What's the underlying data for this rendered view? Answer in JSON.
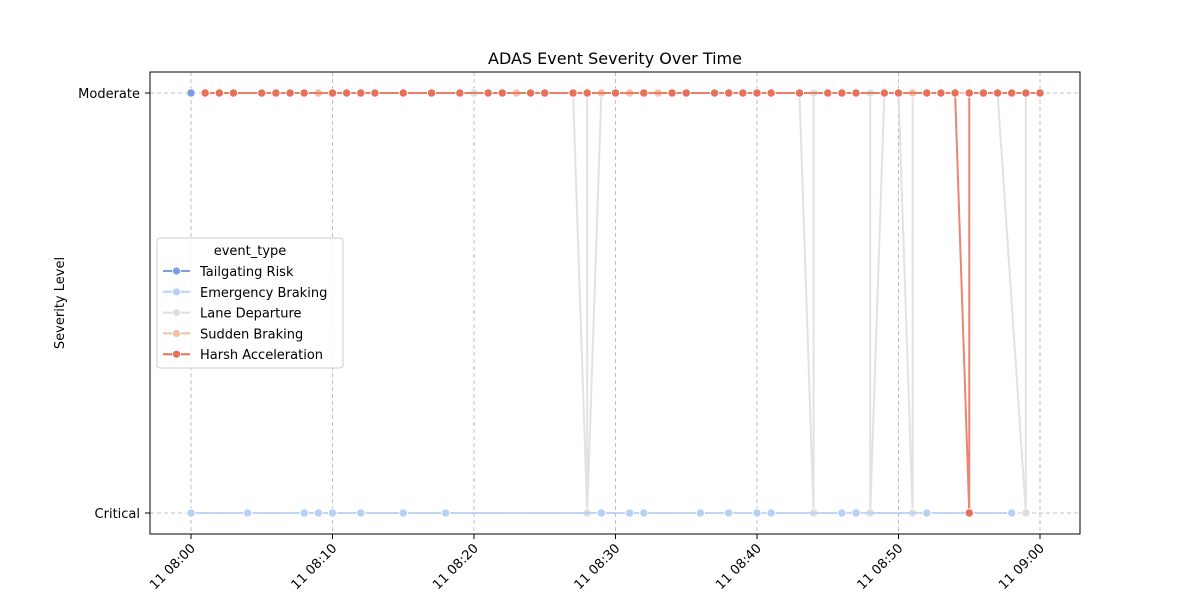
{
  "chart_data": {
    "type": "line",
    "title": "ADAS Event Severity Over Time",
    "xlabel": "",
    "ylabel": "Severity Level",
    "y_categories": [
      "Critical",
      "Moderate"
    ],
    "x_range": [
      "08:00",
      "09:00"
    ],
    "x_ticks": [
      "11 08:00",
      "11 08:10",
      "11 08:20",
      "11 08:30",
      "11 08:40",
      "11 08:50",
      "11 09:00"
    ],
    "grid": true,
    "legend": {
      "title": "event_type",
      "placement": "center-left"
    },
    "series": [
      {
        "name": "Tailgating Risk",
        "color": "#7b9ee6",
        "points": [
          [
            "08:00",
            "Moderate"
          ]
        ]
      },
      {
        "name": "Emergency Braking",
        "color": "#b9d0f5",
        "points": [
          [
            "08:00",
            "Critical"
          ],
          [
            "08:04",
            "Critical"
          ],
          [
            "08:04",
            "Critical"
          ],
          [
            "08:08",
            "Critical"
          ],
          [
            "08:09",
            "Critical"
          ],
          [
            "08:10",
            "Critical"
          ],
          [
            "08:12",
            "Critical"
          ],
          [
            "08:15",
            "Critical"
          ],
          [
            "08:18",
            "Critical"
          ],
          [
            "08:29",
            "Critical"
          ],
          [
            "08:31",
            "Critical"
          ],
          [
            "08:32",
            "Critical"
          ],
          [
            "08:36",
            "Critical"
          ],
          [
            "08:38",
            "Critical"
          ],
          [
            "08:40",
            "Critical"
          ],
          [
            "08:40",
            "Critical"
          ],
          [
            "08:41",
            "Critical"
          ],
          [
            "08:46",
            "Critical"
          ],
          [
            "08:47",
            "Critical"
          ],
          [
            "08:52",
            "Critical"
          ],
          [
            "08:58",
            "Critical"
          ]
        ]
      },
      {
        "name": "Lane Departure",
        "color": "#dddddd",
        "points": [
          [
            "08:01",
            "Moderate"
          ],
          [
            "08:05",
            "Moderate"
          ],
          [
            "08:10",
            "Moderate"
          ],
          [
            "08:15",
            "Moderate"
          ],
          [
            "08:20",
            "Moderate"
          ],
          [
            "08:25",
            "Moderate"
          ],
          [
            "08:27",
            "Moderate"
          ],
          [
            "08:28",
            "Critical"
          ],
          [
            "08:28",
            "Moderate"
          ],
          [
            "08:28",
            "Critical"
          ],
          [
            "08:29",
            "Moderate"
          ],
          [
            "08:35",
            "Moderate"
          ],
          [
            "08:40",
            "Moderate"
          ],
          [
            "08:43",
            "Moderate"
          ],
          [
            "08:44",
            "Critical"
          ],
          [
            "08:44",
            "Moderate"
          ],
          [
            "08:48",
            "Moderate"
          ],
          [
            "08:48",
            "Critical"
          ],
          [
            "08:49",
            "Moderate"
          ],
          [
            "08:50",
            "Moderate"
          ],
          [
            "08:51",
            "Critical"
          ],
          [
            "08:51",
            "Moderate"
          ],
          [
            "08:55",
            "Moderate"
          ],
          [
            "08:57",
            "Moderate"
          ],
          [
            "08:59",
            "Critical"
          ],
          [
            "08:59",
            "Moderate"
          ],
          [
            "09:00",
            "Moderate"
          ]
        ]
      },
      {
        "name": "Sudden Braking",
        "color": "#f5bfa6",
        "points": [
          [
            "08:01",
            "Moderate"
          ],
          [
            "08:03",
            "Moderate"
          ],
          [
            "08:05",
            "Moderate"
          ],
          [
            "08:07",
            "Moderate"
          ],
          [
            "08:09",
            "Moderate"
          ],
          [
            "08:11",
            "Moderate"
          ],
          [
            "08:13",
            "Moderate"
          ],
          [
            "08:15",
            "Moderate"
          ],
          [
            "08:17",
            "Moderate"
          ],
          [
            "08:19",
            "Moderate"
          ],
          [
            "08:21",
            "Moderate"
          ],
          [
            "08:23",
            "Moderate"
          ],
          [
            "08:25",
            "Moderate"
          ],
          [
            "08:27",
            "Moderate"
          ],
          [
            "08:29",
            "Moderate"
          ],
          [
            "08:31",
            "Moderate"
          ],
          [
            "08:33",
            "Moderate"
          ],
          [
            "08:35",
            "Moderate"
          ],
          [
            "08:37",
            "Moderate"
          ],
          [
            "08:39",
            "Moderate"
          ],
          [
            "08:41",
            "Moderate"
          ],
          [
            "08:43",
            "Moderate"
          ],
          [
            "08:45",
            "Moderate"
          ],
          [
            "08:47",
            "Moderate"
          ],
          [
            "08:49",
            "Moderate"
          ],
          [
            "08:51",
            "Moderate"
          ],
          [
            "08:53",
            "Moderate"
          ],
          [
            "08:55",
            "Moderate"
          ],
          [
            "08:57",
            "Moderate"
          ],
          [
            "08:59",
            "Moderate"
          ]
        ]
      },
      {
        "name": "Harsh Acceleration",
        "color": "#e8705a",
        "points": [
          [
            "08:01",
            "Moderate"
          ],
          [
            "08:01",
            "Moderate"
          ],
          [
            "08:02",
            "Moderate"
          ],
          [
            "08:03",
            "Moderate"
          ],
          [
            "08:05",
            "Moderate"
          ],
          [
            "08:06",
            "Moderate"
          ],
          [
            "08:06",
            "Moderate"
          ],
          [
            "08:07",
            "Moderate"
          ],
          [
            "08:08",
            "Moderate"
          ],
          [
            "08:10",
            "Moderate"
          ],
          [
            "08:11",
            "Moderate"
          ],
          [
            "08:12",
            "Moderate"
          ],
          [
            "08:13",
            "Moderate"
          ],
          [
            "08:15",
            "Moderate"
          ],
          [
            "08:17",
            "Moderate"
          ],
          [
            "08:19",
            "Moderate"
          ],
          [
            "08:21",
            "Moderate"
          ],
          [
            "08:22",
            "Moderate"
          ],
          [
            "08:24",
            "Moderate"
          ],
          [
            "08:25",
            "Moderate"
          ],
          [
            "08:27",
            "Moderate"
          ],
          [
            "08:28",
            "Moderate"
          ],
          [
            "08:28",
            "Moderate"
          ],
          [
            "08:30",
            "Moderate"
          ],
          [
            "08:32",
            "Moderate"
          ],
          [
            "08:34",
            "Moderate"
          ],
          [
            "08:35",
            "Moderate"
          ],
          [
            "08:37",
            "Moderate"
          ],
          [
            "08:38",
            "Moderate"
          ],
          [
            "08:39",
            "Moderate"
          ],
          [
            "08:40",
            "Moderate"
          ],
          [
            "08:41",
            "Moderate"
          ],
          [
            "08:43",
            "Moderate"
          ],
          [
            "08:45",
            "Moderate"
          ],
          [
            "08:46",
            "Moderate"
          ],
          [
            "08:47",
            "Moderate"
          ],
          [
            "08:49",
            "Moderate"
          ],
          [
            "08:50",
            "Moderate"
          ],
          [
            "08:52",
            "Moderate"
          ],
          [
            "08:53",
            "Moderate"
          ],
          [
            "08:54",
            "Moderate"
          ],
          [
            "08:55",
            "Critical"
          ],
          [
            "08:55",
            "Moderate"
          ],
          [
            "08:56",
            "Moderate"
          ],
          [
            "08:57",
            "Moderate"
          ],
          [
            "08:58",
            "Moderate"
          ],
          [
            "08:59",
            "Moderate"
          ],
          [
            "09:00",
            "Moderate"
          ]
        ]
      }
    ]
  }
}
